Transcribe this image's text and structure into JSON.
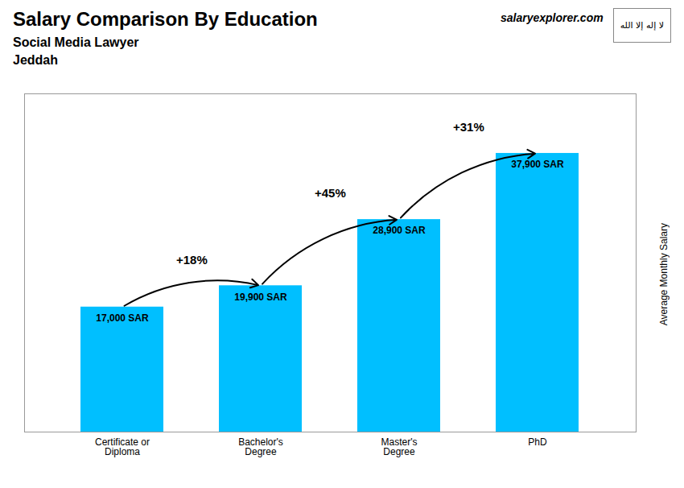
{
  "chart_data": {
    "type": "bar",
    "title": "Salary Comparison By Education",
    "subtitle": "Social Media Lawyer",
    "annotations": [
      "Jeddah",
      "salaryexplorer.com",
      "لا إله إلا الله"
    ],
    "ylabel": "Average Monthly Salary",
    "categories": [
      "Certificate or\nDiploma",
      "Bachelor's\nDegree",
      "Master's\nDegree",
      "PhD"
    ],
    "values": [
      17000,
      19900,
      28900,
      37900
    ],
    "value_labels": [
      "17,000 SAR",
      "19,900 SAR",
      "28,900 SAR",
      "37,900 SAR"
    ],
    "data_labels": true,
    "arrows": [
      {
        "from": "Certificate or\nDiploma",
        "to": "Bachelor's\nDegree",
        "label": "+18%"
      },
      {
        "from": "Bachelor's\nDegree",
        "to": "Master's\nDegree",
        "label": "+45%"
      },
      {
        "from": "Master's\nDegree",
        "to": "PhD",
        "label": "+31%"
      }
    ],
    "color": "#00BFFF",
    "ylim": [
      0,
      46000
    ],
    "tick_labels": "x",
    "grid": false
  }
}
